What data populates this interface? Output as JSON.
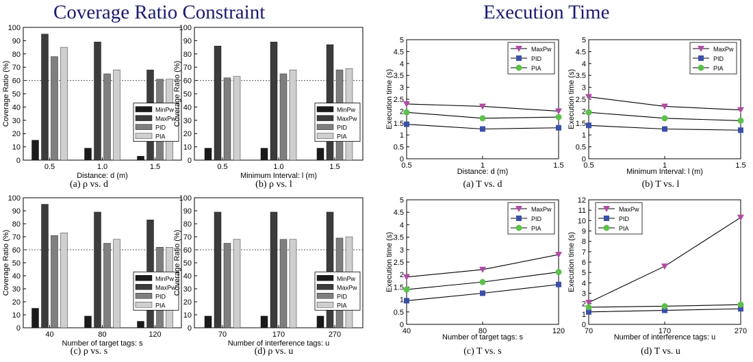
{
  "sections": [
    {
      "title": "Coverage Ratio Constraint"
    },
    {
      "title": "Execution Time"
    }
  ],
  "colors": {
    "MinPw": "#1a1a1a",
    "MaxPw": "#3c3c3c",
    "PID": "#7f7f7f",
    "PIA": "#cfcfcf",
    "line_MaxPw": "#b04aa6",
    "line_PID": "#3b4fa8",
    "line_PIA": "#5cc04a"
  },
  "chart_data": [
    {
      "type": "bar",
      "caption": "(a) ρ vs. d",
      "categories": [
        "0.5",
        "1.0",
        "1.5"
      ],
      "xlabel": "Distance: d (m)",
      "ylabel": "Coverage Ratio (%)",
      "ylim": [
        0,
        100
      ],
      "yticks": [
        0,
        10,
        20,
        30,
        40,
        50,
        60,
        70,
        80,
        90,
        100
      ],
      "threshold": 60,
      "legend": "right",
      "series": [
        {
          "name": "MinPw",
          "values": [
            15,
            9,
            3
          ]
        },
        {
          "name": "MaxPw",
          "values": [
            95,
            89,
            68
          ]
        },
        {
          "name": "PID",
          "values": [
            78,
            65,
            61
          ]
        },
        {
          "name": "PIA",
          "values": [
            85,
            68,
            61
          ]
        }
      ]
    },
    {
      "type": "bar",
      "caption": "(b) ρ vs. l",
      "categories": [
        "0.5",
        "1.0",
        "1.5"
      ],
      "xlabel": "Minimum Interval: l (m)",
      "ylabel": "Coverage Ratio (%)",
      "ylim": [
        0,
        100
      ],
      "yticks": [
        0,
        10,
        20,
        30,
        40,
        50,
        60,
        70,
        80,
        90,
        100
      ],
      "threshold": 60,
      "legend": "right",
      "series": [
        {
          "name": "MinPw",
          "values": [
            9,
            9,
            9
          ]
        },
        {
          "name": "MaxPw",
          "values": [
            86,
            89,
            87
          ]
        },
        {
          "name": "PID",
          "values": [
            62,
            65,
            68
          ]
        },
        {
          "name": "PIA",
          "values": [
            63,
            68,
            69
          ]
        }
      ]
    },
    {
      "type": "bar",
      "caption": "(c) ρ vs. s",
      "categories": [
        "40",
        "80",
        "120"
      ],
      "xlabel": "Number of target tags: s",
      "ylabel": "Coverage Ratio (%)",
      "ylim": [
        0,
        100
      ],
      "yticks": [
        0,
        10,
        20,
        30,
        40,
        50,
        60,
        70,
        80,
        90,
        100
      ],
      "threshold": 60,
      "legend": "right",
      "series": [
        {
          "name": "MinPw",
          "values": [
            15,
            9,
            5
          ]
        },
        {
          "name": "MaxPw",
          "values": [
            95,
            89,
            83
          ]
        },
        {
          "name": "PID",
          "values": [
            71,
            65,
            62
          ]
        },
        {
          "name": "PIA",
          "values": [
            73,
            68,
            62
          ]
        }
      ]
    },
    {
      "type": "bar",
      "caption": "(d) ρ vs. u",
      "categories": [
        "70",
        "170",
        "270"
      ],
      "xlabel": "Number of interference tags: u",
      "ylabel": "Coverage Ratio (%)",
      "ylim": [
        0,
        100
      ],
      "yticks": [
        0,
        10,
        20,
        30,
        40,
        50,
        60,
        70,
        80,
        90,
        100
      ],
      "threshold": 60,
      "legend": "right",
      "series": [
        {
          "name": "MinPw",
          "values": [
            9,
            9,
            9
          ]
        },
        {
          "name": "MaxPw",
          "values": [
            89,
            89,
            89
          ]
        },
        {
          "name": "PID",
          "values": [
            65,
            68,
            69
          ]
        },
        {
          "name": "PIA",
          "values": [
            68,
            68,
            70
          ]
        }
      ]
    },
    {
      "type": "line",
      "caption": "(a) T vs. d",
      "x": [
        0.5,
        1.0,
        1.5
      ],
      "xticks": [
        "0.5",
        "1",
        "1.5"
      ],
      "xlabel": "Distance: d (m)",
      "ylabel": "Execution time (s)",
      "ylim": [
        0,
        5
      ],
      "yticks": [
        "0",
        "0.5",
        "1",
        "1.5",
        "2",
        "2.5",
        "3",
        "3.5",
        "4",
        "4.5",
        "5"
      ],
      "legend": "top-right",
      "series": [
        {
          "name": "MaxPw",
          "values": [
            2.3,
            2.2,
            2.0
          ]
        },
        {
          "name": "PID",
          "values": [
            1.45,
            1.25,
            1.3
          ]
        },
        {
          "name": "PIA",
          "values": [
            1.95,
            1.7,
            1.75
          ]
        }
      ]
    },
    {
      "type": "line",
      "caption": "(b) T vs. l",
      "x": [
        0.5,
        1.0,
        1.5
      ],
      "xticks": [
        "0.5",
        "1",
        "1.5"
      ],
      "xlabel": "Minimum Interval: l (m)",
      "ylabel": "Execution time (s)",
      "ylim": [
        0,
        5
      ],
      "yticks": [
        "0",
        "0.5",
        "1",
        "1.5",
        "2",
        "2.5",
        "3",
        "3.5",
        "4",
        "4.5",
        "5"
      ],
      "legend": "top-right",
      "series": [
        {
          "name": "MaxPw",
          "values": [
            2.6,
            2.2,
            2.05
          ]
        },
        {
          "name": "PID",
          "values": [
            1.4,
            1.25,
            1.2
          ]
        },
        {
          "name": "PIA",
          "values": [
            1.95,
            1.7,
            1.6
          ]
        }
      ]
    },
    {
      "type": "line",
      "caption": "(c) T vs. s",
      "x": [
        40,
        80,
        120
      ],
      "xticks": [
        "40",
        "80",
        "120"
      ],
      "xlabel": "Number of target tags: s",
      "ylabel": "Execution time (s)",
      "ylim": [
        0,
        5
      ],
      "yticks": [
        "0",
        "0.5",
        "1",
        "1.5",
        "2",
        "2.5",
        "3",
        "3.5",
        "4",
        "4.5",
        "5"
      ],
      "legend": "top-right",
      "series": [
        {
          "name": "MaxPw",
          "values": [
            1.9,
            2.2,
            2.8
          ]
        },
        {
          "name": "PID",
          "values": [
            0.95,
            1.25,
            1.6
          ]
        },
        {
          "name": "PIA",
          "values": [
            1.4,
            1.7,
            2.1
          ]
        }
      ]
    },
    {
      "type": "line",
      "caption": "(d) T vs. u",
      "x": [
        70,
        170,
        270
      ],
      "xticks": [
        "70",
        "170",
        "270"
      ],
      "xlabel": "Number of interference tags: u",
      "ylabel": "Execution time (s)",
      "ylim": [
        0,
        12
      ],
      "yticks": [
        "0",
        "1",
        "2",
        "3",
        "4",
        "5",
        "6",
        "7",
        "8",
        "9",
        "10",
        "11",
        "12"
      ],
      "legend": "top-left",
      "series": [
        {
          "name": "MaxPw",
          "values": [
            2.1,
            5.6,
            10.3
          ]
        },
        {
          "name": "PID",
          "values": [
            1.2,
            1.35,
            1.5
          ]
        },
        {
          "name": "PIA",
          "values": [
            1.65,
            1.75,
            1.9
          ]
        }
      ]
    }
  ]
}
